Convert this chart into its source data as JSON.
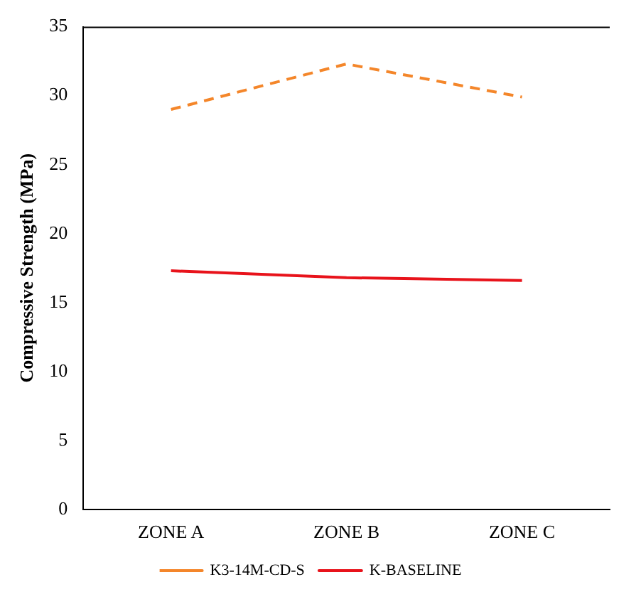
{
  "chart_data": {
    "type": "line",
    "ylabel": "Compressive Strength (MPa)",
    "categories": [
      "ZONE A",
      "ZONE B",
      "ZONE C"
    ],
    "series": [
      {
        "name": "K3-14M-CD-S",
        "color": "#f4862a",
        "values": [
          29.0,
          32.3,
          29.9
        ],
        "line_style": "dashed"
      },
      {
        "name": "K-BASELINE",
        "color": "#e8131b",
        "values": [
          17.3,
          16.8,
          16.6
        ],
        "line_style": "solid"
      }
    ],
    "ylim": [
      0,
      35
    ],
    "yticks": [
      0,
      5,
      10,
      15,
      20,
      25,
      30,
      35
    ],
    "grid": false,
    "legend": "bottom",
    "marker": "none"
  }
}
